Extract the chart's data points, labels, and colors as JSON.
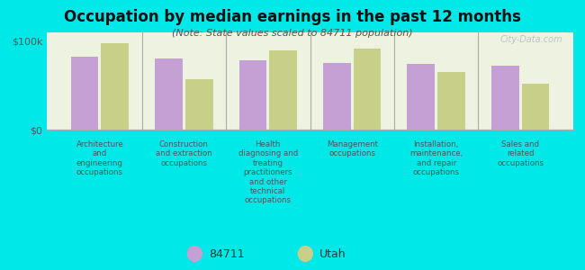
{
  "title": "Occupation by median earnings in the past 12 months",
  "subtitle": "(Note: State values scaled to 84711 population)",
  "background_color": "#00e8e8",
  "plot_bg_color": "#eef2e0",
  "categories": [
    "Architecture\nand\nengineering\noccupations",
    "Construction\nand extraction\noccupations",
    "Health\ndiagnosing and\ntreating\npractitioners\nand other\ntechnical\noccupations",
    "Management\noccupations",
    "Installation,\nmaintenance,\nand repair\noccupations",
    "Sales and\nrelated\noccupations"
  ],
  "values_84711": [
    82000,
    80000,
    78000,
    75000,
    74000,
    72000
  ],
  "values_utah": [
    98000,
    57000,
    90000,
    92000,
    65000,
    52000
  ],
  "color_84711": "#c4a0d4",
  "color_utah": "#c8cf88",
  "ylim": [
    0,
    110000
  ],
  "yticks": [
    0,
    100000
  ],
  "ytick_labels": [
    "$0",
    "$100k"
  ],
  "legend_label_84711": "84711",
  "legend_label_utah": "Utah",
  "watermark": "City-Data.com"
}
